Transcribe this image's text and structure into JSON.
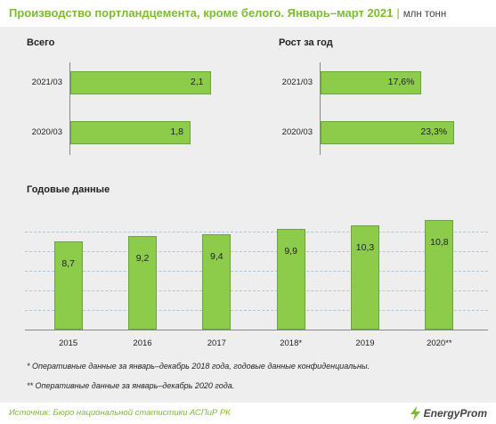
{
  "header": {
    "title": "Производство портландцемента, кроме белого. Январь–март 2021",
    "separator": "|",
    "unit": "млн тонн"
  },
  "colors": {
    "accent": "#7dbb2f",
    "bar_fill": "#8dcb4b",
    "bar_border": "#6da33a",
    "background": "#eeeeee"
  },
  "chart_data": [
    {
      "type": "bar",
      "orientation": "horizontal",
      "title": "Всего",
      "categories": [
        "2021/03",
        "2020/03"
      ],
      "values": [
        2.1,
        1.8
      ],
      "labels": [
        "2,1",
        "1,8"
      ],
      "xlim": [
        0,
        2.2
      ]
    },
    {
      "type": "bar",
      "orientation": "horizontal",
      "title": "Рост за год",
      "categories": [
        "2021/03",
        "2020/03"
      ],
      "values": [
        17.6,
        23.3
      ],
      "labels": [
        "17,6%",
        "23,3%"
      ],
      "xlim": [
        0,
        27
      ]
    },
    {
      "type": "bar",
      "orientation": "vertical",
      "title": "Годовые данные",
      "categories": [
        "2015",
        "2016",
        "2017",
        "2018*",
        "2019",
        "2020**"
      ],
      "values": [
        8.7,
        9.2,
        9.4,
        9.9,
        10.3,
        10.8
      ],
      "labels": [
        "8,7",
        "9,2",
        "9,4",
        "9,9",
        "10,3",
        "10,8"
      ],
      "ylim": [
        0,
        11.6
      ],
      "grid": true
    }
  ],
  "notes": [
    "* Оперативные данные за январь–декабрь 2018 года, годовые данные конфиденциальны.",
    "** Оперативные данные за январь–декабрь 2020 года."
  ],
  "footer": {
    "source": "Источник: Бюро национальной  статистики АСПиР РК",
    "logo_icon": "lightning-bolt-icon",
    "logo_text": "EnergyProm"
  }
}
